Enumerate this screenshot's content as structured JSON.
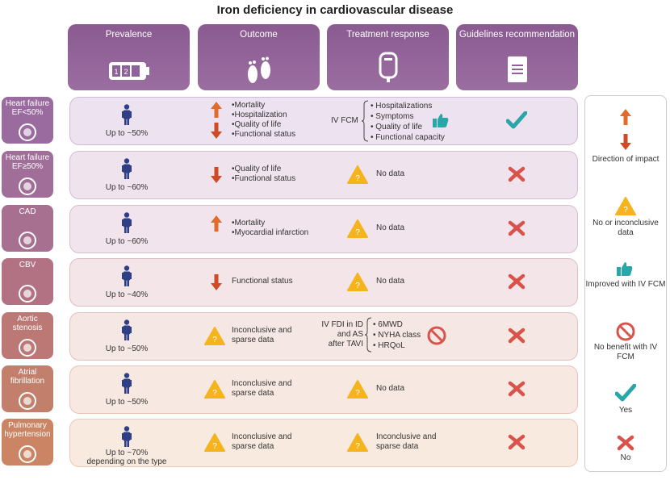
{
  "title": "Iron deficiency in cardiovascular disease",
  "headers": [
    {
      "label": "Prevalence",
      "icon": "battery-icon"
    },
    {
      "label": "Outcome",
      "icon": "footprints-icon"
    },
    {
      "label": "Treatment response",
      "icon": "iv-bag-icon"
    },
    {
      "label": "Guidelines recommendation",
      "icon": "document-icon"
    }
  ],
  "battery_digits": "1 2",
  "colors": {
    "header": "#8f619a",
    "up": "#e06b2c",
    "down": "#d04a25",
    "warn": "#f5b41e",
    "check": "#2aa6a8",
    "cross": "#d9534a"
  },
  "rows": [
    {
      "side": "Heart failure EF<50%",
      "side_color": "#9a6b9e",
      "bg": "#ede2ef",
      "prevalence": "Up to ~50%",
      "outcome_type": "arrows-two",
      "outcome": [
        "•Mortality",
        "•Hospitalization",
        "•Quality of life",
        "•Functional status"
      ],
      "treatment_type": "ivfcm",
      "treatment_prefix": "IV FCM",
      "treatment": [
        "• Hospitalizations",
        "• Symptoms",
        "• Quality of life",
        "• Functional capacity"
      ],
      "guideline": "yes"
    },
    {
      "side": "Heart failure EF≥50%",
      "side_color": "#a06e98",
      "bg": "#efe3ee",
      "prevalence": "Up to ~60%",
      "outcome_type": "down",
      "outcome": [
        "•Quality of life",
        "•Functional status"
      ],
      "treatment_type": "nodata",
      "treatment": [
        "No data"
      ],
      "guideline": "no"
    },
    {
      "side": "CAD",
      "side_color": "#a87090",
      "bg": "#f1e4ec",
      "prevalence": "Up to ~60%",
      "outcome_type": "up",
      "outcome": [
        "•Mortality",
        "•Myocardial infarction"
      ],
      "treatment_type": "nodata",
      "treatment": [
        "No data"
      ],
      "guideline": "no"
    },
    {
      "side": "CBV",
      "side_color": "#b27283",
      "bg": "#f3e5e8",
      "prevalence": "Up to ~40%",
      "outcome_type": "down",
      "outcome": [
        "Functional status"
      ],
      "treatment_type": "nodata",
      "treatment": [
        "No data"
      ],
      "guideline": "no"
    },
    {
      "side": "Aortic stenosis",
      "side_color": "#bb7874",
      "bg": "#f5e7e3",
      "prevalence": "Up to ~50%",
      "outcome_type": "inconclusive",
      "outcome": [
        "Inconclusive and",
        "sparse data"
      ],
      "treatment_type": "ivfdi",
      "treatment_prefix": "IV FDI in ID and AS after TAVI",
      "treatment_prefix_lines": [
        "IV FDI in ID",
        "and AS",
        "after TAVI"
      ],
      "treatment": [
        "• 6MWD",
        "• NYHA class",
        "• HRQoL"
      ],
      "guideline": "no"
    },
    {
      "side": "Atrial fibrillation",
      "side_color": "#c27f6b",
      "bg": "#f7e9e1",
      "prevalence": "Up to ~50%",
      "outcome_type": "inconclusive",
      "outcome": [
        "Inconclusive and",
        "sparse data"
      ],
      "treatment_type": "nodata",
      "treatment": [
        "No data"
      ],
      "guideline": "no"
    },
    {
      "side": "Pulmonary hypertension",
      "side_color": "#cb8564",
      "bg": "#f9eadf",
      "prevalence": "Up to ~70% depending on the type",
      "prevalence_lines": [
        "Up to ~70%",
        "depending on the type"
      ],
      "outcome_type": "inconclusive",
      "outcome": [
        "Inconclusive and",
        "sparse data"
      ],
      "treatment_type": "inconclusive",
      "treatment": [
        "Inconclusive and",
        "sparse data"
      ],
      "guideline": "no"
    }
  ],
  "legend": [
    {
      "icon": "up-arrow-icon",
      "label": ""
    },
    {
      "icon": "down-arrow-icon",
      "label": "Direction of impact"
    },
    {
      "icon": "warning-icon",
      "label": "No or inconclusive data"
    },
    {
      "icon": "thumbs-up-icon",
      "label": "Improved with IV FCM"
    },
    {
      "icon": "no-benefit-icon",
      "label": "No benefit with IV FCM"
    },
    {
      "icon": "check-icon",
      "label": "Yes"
    },
    {
      "icon": "cross-icon",
      "label": "No"
    }
  ]
}
